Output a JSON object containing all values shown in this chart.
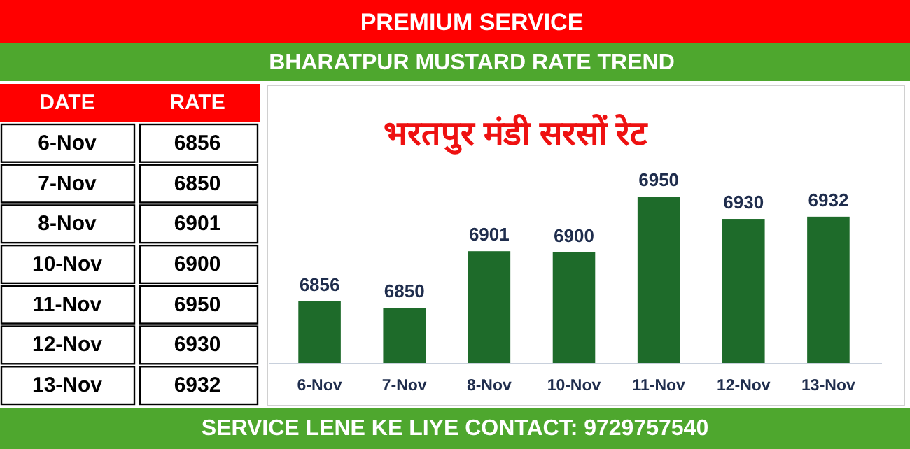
{
  "chart_data": [
    {
      "type": "other",
      "xlabel": "DATE",
      "ylabel": "RATE",
      "categories": [
        "6-Nov",
        "7-Nov",
        "8-Nov",
        "10-Nov",
        "11-Nov",
        "12-Nov",
        "13-Nov"
      ],
      "values": [
        6856,
        6850,
        6901,
        6900,
        6950,
        6930,
        6932
      ],
      "data_labels": true
    },
    {
      "type": "bar",
      "title": "भरतपुर मंडी सरसों रेट",
      "subtitle": "BHARATPUR MUSTARD RATE TREND",
      "categories": [
        "6-Nov",
        "7-Nov",
        "8-Nov",
        "10-Nov",
        "11-Nov",
        "12-Nov",
        "13-Nov"
      ],
      "values": [
        6856,
        6850,
        6901,
        6900,
        6950,
        6930,
        6932
      ],
      "color": "#1e6b2a",
      "ylim": [
        6800,
        7050
      ],
      "data_labels": true,
      "tick_labels": "x",
      "annotations": [
        "PREMIUM SERVICE",
        "SERVICE LENE KE LIYE CONTACT: 9729757540"
      ]
    }
  ]
}
